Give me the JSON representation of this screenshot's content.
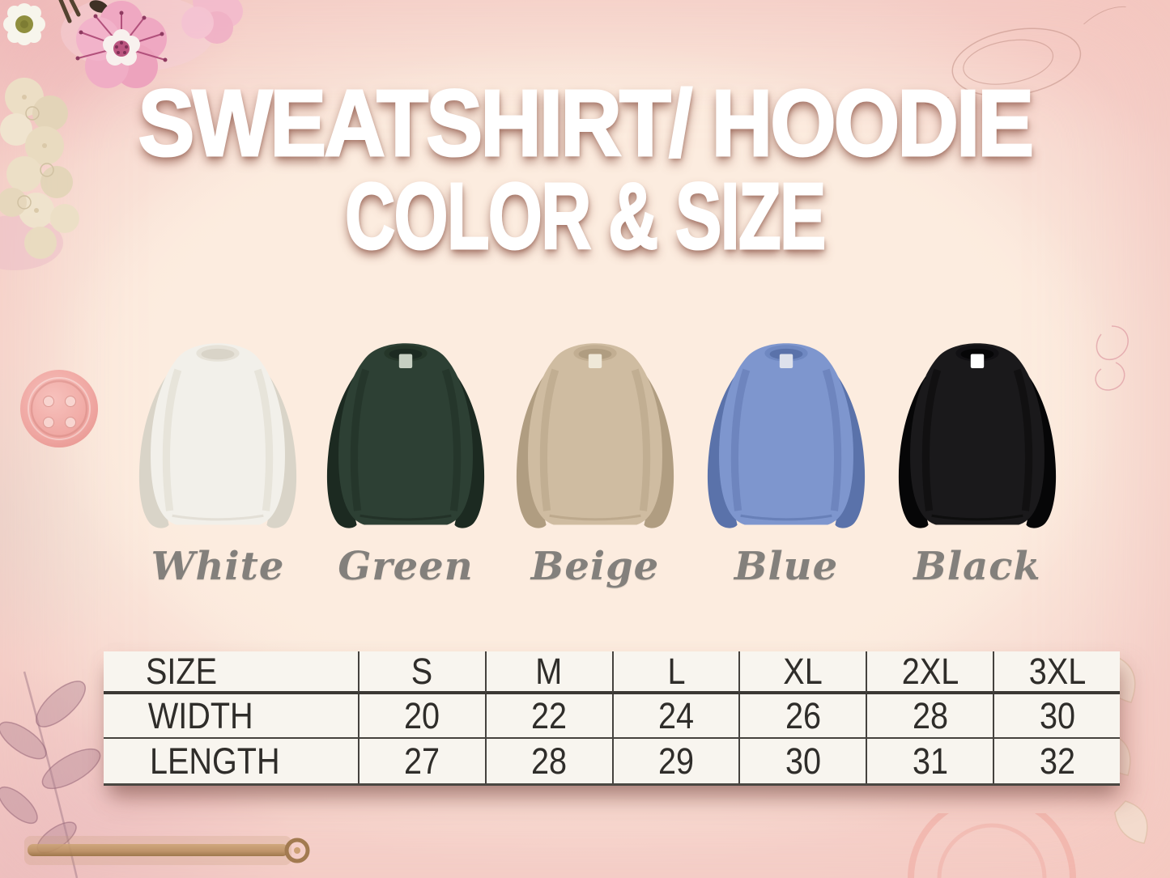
{
  "title": {
    "line1": "SWEATSHIRT/ HOODIE",
    "line2": "COLOR & SIZE"
  },
  "colors": [
    {
      "name": "White",
      "body": "#f2f0ea",
      "shade": "#d9d4c8",
      "trim": "#e6e2d8",
      "tag": ""
    },
    {
      "name": "Green",
      "body": "#2d4034",
      "shade": "#1c2a21",
      "trim": "#253629",
      "tag": "#c6cfc2"
    },
    {
      "name": "Beige",
      "body": "#cfbca1",
      "shade": "#b09d81",
      "trim": "#c2ae92",
      "tag": "#efe8d8"
    },
    {
      "name": "Blue",
      "body": "#7e96ce",
      "shade": "#5a72aa",
      "trim": "#6f88c1",
      "tag": "#dde1ec"
    },
    {
      "name": "Black",
      "body": "#1a191b",
      "shade": "#060607",
      "trim": "#111013",
      "tag": "#ffffff"
    }
  ],
  "size_chart": {
    "columns": [
      "SIZE",
      "S",
      "M",
      "L",
      "XL",
      "2XL",
      "3XL"
    ],
    "rows": [
      {
        "label": "WIDTH",
        "values": [
          "20",
          "22",
          "24",
          "26",
          "28",
          "30"
        ]
      },
      {
        "label": "LENGTH",
        "values": [
          "27",
          "28",
          "29",
          "30",
          "31",
          "32"
        ]
      }
    ]
  },
  "style": {
    "border_pink": "#f6d2cb",
    "canvas_peach": "#fcecdf",
    "title_white": "#ffffff",
    "table_ink": "#2f2d2a",
    "label_gray": "#83807c"
  }
}
